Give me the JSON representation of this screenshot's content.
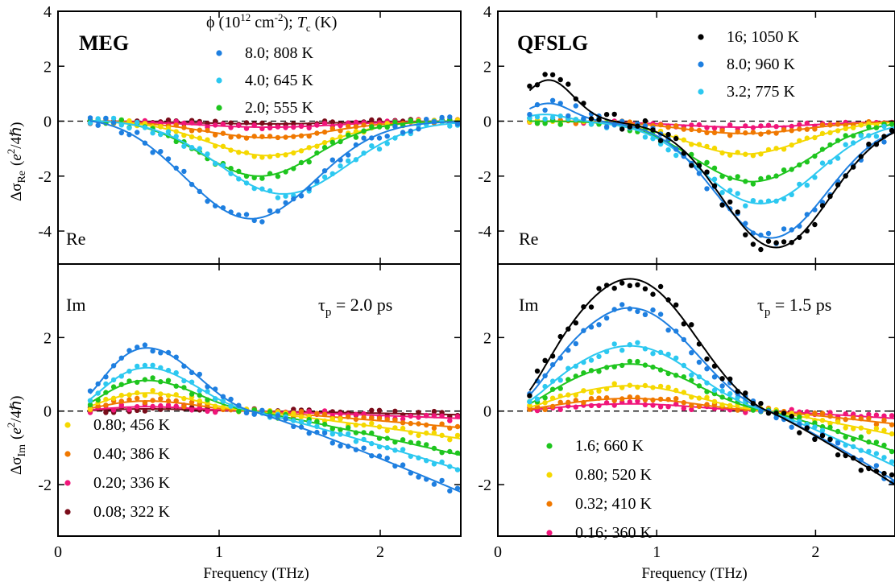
{
  "figure": {
    "y_labels": {
      "top": {
        "prefix": "Δσ",
        "sub": "Re",
        "mid": "(",
        "e": "e",
        "sup": "2",
        "h": "/4ℏ)"
      },
      "bottom": {
        "prefix": "Δσ",
        "sub": "Im",
        "mid": "(",
        "e": "e",
        "sup": "2",
        "h": "/4ℏ)"
      }
    },
    "x_label": "Frequency (THz)",
    "legend_header": {
      "a": "ϕ (10",
      "sup": "12",
      "b": " cm",
      "sup2": "-2",
      "c": "); ",
      "tc": "T",
      "tcsub": "c",
      "d": " (K)"
    },
    "panels": [
      {
        "id": "meg-re",
        "title": "MEG",
        "corner": "Re"
      },
      {
        "id": "qfslg-re",
        "title": "QFSLG",
        "corner": "Re"
      },
      {
        "id": "meg-im",
        "corner": "Im",
        "tau_prefix": "τ",
        "tau_sub": "p",
        "tau_value": " = 2.0 ps"
      },
      {
        "id": "qfslg-im",
        "corner": "Im",
        "tau_prefix": "τ",
        "tau_sub": "p",
        "tau_value": " = 1.5 ps"
      }
    ],
    "legends": {
      "meg_top": [
        {
          "label": "8.0; 808 K",
          "color": "#1e7fe0"
        },
        {
          "label": "4.0; 645 K",
          "color": "#2cc8f0"
        },
        {
          "label": "2.0; 555 K",
          "color": "#1ec51e"
        }
      ],
      "meg_bottom": [
        {
          "label": "0.80; 456 K",
          "color": "#f5d800"
        },
        {
          "label": "0.40; 386 K",
          "color": "#f07800"
        },
        {
          "label": "0.20; 336 K",
          "color": "#f0157a"
        },
        {
          "label": "0.08; 322 K",
          "color": "#7a0c1a"
        }
      ],
      "qfslg_top": [
        {
          "label": "16; 1050 K",
          "color": "#000000"
        },
        {
          "label": "8.0; 960 K",
          "color": "#1e7fe0"
        },
        {
          "label": "3.2; 775 K",
          "color": "#2cc8f0"
        }
      ],
      "qfslg_bottom": [
        {
          "label": "1.6; 660 K",
          "color": "#1ec51e"
        },
        {
          "label": "0.80; 520 K",
          "color": "#f5d800"
        },
        {
          "label": "0.32; 410 K",
          "color": "#f07800"
        },
        {
          "label": "0.16; 360 K",
          "color": "#f0157a"
        }
      ]
    }
  },
  "chart_data": [
    {
      "type": "scatter",
      "title": "MEG",
      "panel": "Re",
      "xlim": [
        0,
        2.5
      ],
      "ylim": [
        -5.2,
        4
      ],
      "xticks": [
        0,
        1,
        2
      ],
      "yticks": [
        -4,
        -2,
        0,
        2,
        4
      ],
      "series": [
        {
          "name": "8.0; 808 K",
          "color": "#1e7fe0",
          "model": {
            "kind": "re",
            "amp": 3.55,
            "peak": 1.2,
            "width": 0.56,
            "offset": 0.1
          }
        },
        {
          "name": "4.0; 645 K",
          "color": "#2cc8f0",
          "model": {
            "kind": "re",
            "amp": 2.65,
            "peak": 1.4,
            "width": 0.56,
            "offset": 0.05
          }
        },
        {
          "name": "2.0; 555 K",
          "color": "#1ec51e",
          "model": {
            "kind": "re",
            "amp": 2.0,
            "peak": 1.25,
            "width": 0.5,
            "offset": 0.05
          }
        },
        {
          "name": "0.80; 456 K",
          "color": "#f5d800",
          "model": {
            "kind": "re",
            "amp": 1.25,
            "peak": 1.3,
            "width": 0.52,
            "offset": 0.0
          }
        },
        {
          "name": "0.40; 386 K",
          "color": "#f07800",
          "model": {
            "kind": "re",
            "amp": 0.6,
            "peak": 1.3,
            "width": 0.55,
            "offset": 0.0
          }
        },
        {
          "name": "0.20; 336 K",
          "color": "#f0157a",
          "model": {
            "kind": "re",
            "amp": 0.22,
            "peak": 1.3,
            "width": 0.6,
            "offset": 0.0
          }
        },
        {
          "name": "0.08; 322 K",
          "color": "#7a0c1a",
          "model": {
            "kind": "re",
            "amp": 0.1,
            "peak": 1.3,
            "width": 0.6,
            "offset": 0.0
          }
        }
      ]
    },
    {
      "type": "scatter",
      "title": "QFSLG",
      "panel": "Re",
      "xlim": [
        0,
        2.5
      ],
      "ylim": [
        -5.2,
        4
      ],
      "xticks": [
        0,
        1,
        2
      ],
      "yticks": [
        -4,
        -2,
        0,
        2,
        4
      ],
      "series": [
        {
          "name": "16; 1050 K",
          "color": "#000000",
          "model": {
            "kind": "reb",
            "amp": 4.6,
            "peak": 1.75,
            "width": 0.48,
            "bump": 1.5,
            "bpeak": 0.32,
            "bwidth": 0.22
          }
        },
        {
          "name": "8.0; 960 K",
          "color": "#1e7fe0",
          "model": {
            "kind": "reb",
            "amp": 4.25,
            "peak": 1.72,
            "width": 0.5,
            "bump": 0.65,
            "bpeak": 0.32,
            "bwidth": 0.2
          }
        },
        {
          "name": "3.2; 775 K",
          "color": "#2cc8f0",
          "model": {
            "kind": "reb",
            "amp": 3.0,
            "peak": 1.65,
            "width": 0.52,
            "bump": 0.25,
            "bpeak": 0.3,
            "bwidth": 0.18
          }
        },
        {
          "name": "1.6; 660 K",
          "color": "#1ec51e",
          "model": {
            "kind": "re",
            "amp": 2.2,
            "peak": 1.6,
            "width": 0.52,
            "offset": 0.0
          }
        },
        {
          "name": "0.80; 520 K",
          "color": "#f5d800",
          "model": {
            "kind": "re",
            "amp": 1.2,
            "peak": 1.55,
            "width": 0.52,
            "offset": 0.0
          }
        },
        {
          "name": "0.32; 410 K",
          "color": "#f07800",
          "model": {
            "kind": "re",
            "amp": 0.45,
            "peak": 1.55,
            "width": 0.55,
            "offset": 0.0
          }
        },
        {
          "name": "0.16; 360 K",
          "color": "#f0157a",
          "model": {
            "kind": "re",
            "amp": 0.22,
            "peak": 1.55,
            "width": 0.6,
            "offset": 0.0
          }
        }
      ]
    },
    {
      "type": "scatter",
      "panel": "Im",
      "xlim": [
        0,
        2.5
      ],
      "ylim": [
        -3.4,
        4
      ],
      "xticks": [
        0,
        1,
        2
      ],
      "yticks": [
        -2,
        0,
        2
      ],
      "series": [
        {
          "name": "8.0; 808 K",
          "color": "#1e7fe0",
          "model": {
            "kind": "im",
            "amp": 1.75,
            "peak": 0.55,
            "zero": 1.2,
            "neg": 2.2
          }
        },
        {
          "name": "4.0; 645 K",
          "color": "#2cc8f0",
          "model": {
            "kind": "im",
            "amp": 1.2,
            "peak": 0.55,
            "zero": 1.2,
            "neg": 1.6
          }
        },
        {
          "name": "2.0; 555 K",
          "color": "#1ec51e",
          "model": {
            "kind": "im",
            "amp": 0.85,
            "peak": 0.55,
            "zero": 1.2,
            "neg": 1.2
          }
        },
        {
          "name": "0.80; 456 K",
          "color": "#f5d800",
          "model": {
            "kind": "im",
            "amp": 0.5,
            "peak": 0.55,
            "zero": 1.2,
            "neg": 0.75
          }
        },
        {
          "name": "0.40; 386 K",
          "color": "#f07800",
          "model": {
            "kind": "im",
            "amp": 0.28,
            "peak": 0.55,
            "zero": 1.2,
            "neg": 0.45
          }
        },
        {
          "name": "0.20; 336 K",
          "color": "#f0157a",
          "model": {
            "kind": "im",
            "amp": 0.12,
            "peak": 0.55,
            "zero": 1.2,
            "neg": 0.2
          }
        },
        {
          "name": "0.08; 322 K",
          "color": "#7a0c1a",
          "model": {
            "kind": "im",
            "amp": 0.06,
            "peak": 0.55,
            "zero": 1.2,
            "neg": 0.1
          }
        }
      ]
    },
    {
      "type": "scatter",
      "panel": "Im",
      "xlim": [
        0,
        2.5
      ],
      "ylim": [
        -3.4,
        4
      ],
      "xticks": [
        0,
        1,
        2
      ],
      "yticks": [
        -2,
        0,
        2
      ],
      "series": [
        {
          "name": "16; 1050 K",
          "color": "#000000",
          "model": {
            "kind": "im",
            "amp": 3.65,
            "peak": 0.85,
            "zero": 1.7,
            "neg": 2.0
          }
        },
        {
          "name": "8.0; 960 K",
          "color": "#1e7fe0",
          "model": {
            "kind": "im",
            "amp": 2.85,
            "peak": 0.85,
            "zero": 1.7,
            "neg": 1.9
          }
        },
        {
          "name": "3.2; 775 K",
          "color": "#2cc8f0",
          "model": {
            "kind": "im",
            "amp": 1.8,
            "peak": 0.85,
            "zero": 1.7,
            "neg": 1.5
          }
        },
        {
          "name": "1.6; 660 K",
          "color": "#1ec51e",
          "model": {
            "kind": "im",
            "amp": 1.3,
            "peak": 0.85,
            "zero": 1.7,
            "neg": 1.1
          }
        },
        {
          "name": "0.80; 520 K",
          "color": "#f5d800",
          "model": {
            "kind": "im",
            "amp": 0.7,
            "peak": 0.85,
            "zero": 1.7,
            "neg": 0.65
          }
        },
        {
          "name": "0.32; 410 K",
          "color": "#f07800",
          "model": {
            "kind": "im",
            "amp": 0.35,
            "peak": 0.85,
            "zero": 1.7,
            "neg": 0.35
          }
        },
        {
          "name": "0.16; 360 K",
          "color": "#f0157a",
          "model": {
            "kind": "im",
            "amp": 0.2,
            "peak": 0.85,
            "zero": 1.7,
            "neg": 0.2
          }
        }
      ]
    }
  ]
}
